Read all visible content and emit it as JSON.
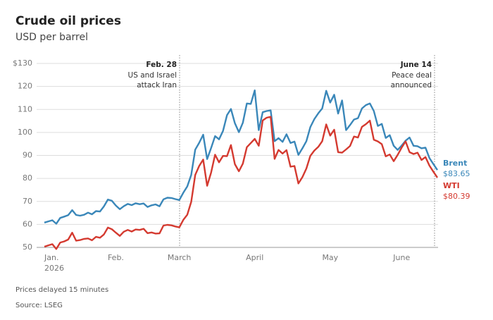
{
  "chart_data": {
    "type": "line",
    "title": "Crude oil prices",
    "subtitle": "USD per barrel",
    "categories": [
      "Jan.",
      null,
      null,
      null,
      null,
      null,
      null,
      null,
      null,
      null,
      null,
      null,
      null,
      null,
      null,
      null,
      null,
      null,
      "Feb.",
      null,
      null,
      null,
      null,
      null,
      null,
      null,
      null,
      null,
      null,
      null,
      null,
      null,
      null,
      null,
      "March",
      null,
      null,
      null,
      null,
      null,
      null,
      null,
      null,
      null,
      null,
      null,
      null,
      null,
      null,
      null,
      null,
      null,
      null,
      "April",
      null,
      null,
      null,
      null,
      null,
      null,
      null,
      null,
      null,
      null,
      null,
      null,
      null,
      null,
      null,
      null,
      null,
      null,
      "May",
      null,
      null,
      null,
      null,
      null,
      null,
      null,
      null,
      null,
      null,
      null,
      null,
      null,
      null,
      null,
      null,
      null,
      "June",
      null,
      null,
      null,
      null,
      null,
      null,
      null,
      null,
      null
    ],
    "x_year": "2026",
    "series": [
      {
        "name": "Brent",
        "color": "#3a87b9",
        "last_value_label": "$83.65",
        "values": [
          60.8,
          61.3,
          61.8,
          60.3,
          62.8,
          63.4,
          64.0,
          66.2,
          64.1,
          63.8,
          64.2,
          65.1,
          64.4,
          65.8,
          65.6,
          67.8,
          70.8,
          70.3,
          68.2,
          66.6,
          67.9,
          68.9,
          68.4,
          69.2,
          68.8,
          69.1,
          67.6,
          68.3,
          68.7,
          67.9,
          70.9,
          71.6,
          71.5,
          71.0,
          70.6,
          73.8,
          76.5,
          81.5,
          92.5,
          95.5,
          99.0,
          88.4,
          93.2,
          98.4,
          97.0,
          100.6,
          107.5,
          110.2,
          104.0,
          100.1,
          104.2,
          112.6,
          112.4,
          118.3,
          101.0,
          108.8,
          109.3,
          109.6,
          96.2,
          97.5,
          95.9,
          99.2,
          95.4,
          96.0,
          90.2,
          93.1,
          96.2,
          102.3,
          105.8,
          108.3,
          110.4,
          118.1,
          113.0,
          116.4,
          108.2,
          113.9,
          101.0,
          103.2,
          105.6,
          106.2,
          110.4,
          111.9,
          112.6,
          109.3,
          102.8,
          103.7,
          97.6,
          98.8,
          94.2,
          92.4,
          94.3,
          96.4,
          97.8,
          94.2,
          94.0,
          93.1,
          93.4,
          88.9,
          86.2,
          83.65
        ]
      },
      {
        "name": "WTI",
        "color": "#d43a30",
        "last_value_label": "$80.39",
        "values": [
          50.3,
          50.9,
          51.4,
          49.3,
          52.1,
          52.6,
          53.4,
          56.4,
          52.9,
          53.2,
          53.7,
          53.9,
          53.1,
          54.6,
          54.2,
          55.6,
          58.6,
          57.9,
          56.4,
          55.0,
          56.8,
          57.6,
          56.9,
          57.8,
          57.6,
          58.1,
          56.2,
          56.5,
          56.0,
          56.1,
          59.5,
          59.8,
          59.6,
          59.1,
          58.7,
          62.0,
          64.2,
          69.8,
          81.5,
          85.4,
          88.2,
          76.8,
          82.5,
          90.3,
          87.0,
          89.8,
          89.7,
          94.5,
          86.2,
          83.1,
          86.4,
          93.6,
          95.4,
          97.2,
          94.2,
          105.2,
          106.4,
          106.8,
          88.5,
          92.4,
          90.8,
          92.3,
          85.1,
          85.4,
          77.8,
          80.6,
          84.3,
          89.8,
          92.1,
          93.7,
          96.2,
          103.5,
          98.6,
          101.2,
          91.4,
          91.2,
          92.6,
          94.1,
          98.2,
          97.8,
          102.4,
          103.6,
          105.1,
          96.8,
          96.1,
          94.9,
          89.6,
          90.4,
          87.5,
          90.2,
          93.4,
          96.1,
          91.4,
          90.6,
          91.2,
          88.0,
          89.3,
          85.6,
          82.9,
          80.39
        ]
      }
    ],
    "ylim": [
      50,
      130
    ],
    "yticks": [
      50,
      60,
      70,
      80,
      90,
      100,
      110,
      120,
      {
        "value": 130,
        "label": "$130"
      }
    ],
    "grid": true,
    "annotations": [
      {
        "title": "Feb. 28",
        "lines": [
          "US and Israel",
          "attack Iran"
        ]
      },
      {
        "title": "June 14",
        "lines": [
          "Peace deal",
          "announced"
        ]
      }
    ],
    "notes": [
      "Prices delayed 15 minutes",
      "Source: LSEG"
    ]
  }
}
